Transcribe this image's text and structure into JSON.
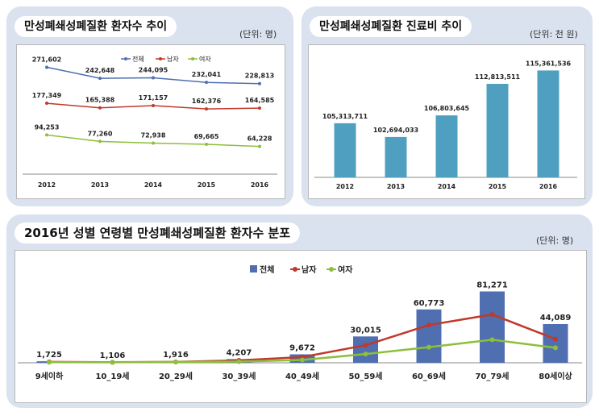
{
  "colors": {
    "total": "#4f6fb0",
    "male": "#c0392b",
    "female": "#8dbf3a",
    "bar": "#4fa0c0"
  },
  "chart_data": [
    {
      "type": "line",
      "title": "만성폐쇄성폐질환 환자수 추이",
      "unit": "(단위: 명)",
      "categories": [
        "2012",
        "2013",
        "2014",
        "2015",
        "2016"
      ],
      "legend": [
        "전체",
        "남자",
        "여자"
      ],
      "series": [
        {
          "name": "전체",
          "values": [
            271602,
            242648,
            244095,
            232041,
            228813
          ],
          "labels": [
            "271,602",
            "242,648",
            "244,095",
            "232,041",
            "228,813"
          ]
        },
        {
          "name": "남자",
          "values": [
            177349,
            165388,
            171157,
            162376,
            164585
          ],
          "labels": [
            "177,349",
            "165,388",
            "171,157",
            "162,376",
            "164,585"
          ]
        },
        {
          "name": "여자",
          "values": [
            94253,
            77260,
            72938,
            69665,
            64228
          ],
          "labels": [
            "94,253",
            "77,260",
            "72,938",
            "69,665",
            "64,228"
          ]
        }
      ],
      "ylim": [
        0,
        300000
      ]
    },
    {
      "type": "bar",
      "title": "만성폐쇄성폐질환 진료비 추이",
      "unit": "(단위: 천 원)",
      "categories": [
        "2012",
        "2013",
        "2014",
        "2015",
        "2016"
      ],
      "values": [
        105313711,
        102694033,
        106803645,
        112813511,
        115361536
      ],
      "labels": [
        "105,313,711",
        "102,694,033",
        "106,803,645",
        "112,813,511",
        "115,361,536"
      ],
      "ylim": [
        95000000,
        116500000
      ]
    },
    {
      "type": "bar",
      "title": "2016년 성별 연령별 만성폐쇄성폐질환 환자수 분포",
      "unit": "(단위: 명)",
      "categories": [
        "9세이하",
        "10_19세",
        "20_29세",
        "30_39세",
        "40_49세",
        "50_59세",
        "60_69세",
        "70_79세",
        "80세이상"
      ],
      "legend": [
        "전체",
        "남자",
        "여자"
      ],
      "series": [
        {
          "name": "전체",
          "type": "bar",
          "values": [
            1725,
            1106,
            1916,
            4207,
            9672,
            30015,
            60773,
            81271,
            44089
          ],
          "labels": [
            "1,725",
            "1,106",
            "1,916",
            "4,207",
            "9,672",
            "30,015",
            "60,773",
            "81,271",
            "44,089"
          ]
        },
        {
          "name": "남자",
          "type": "line",
          "values": [
            1000,
            600,
            1000,
            2800,
            6500,
            20000,
            43000,
            55000,
            27000
          ]
        },
        {
          "name": "여자",
          "type": "line",
          "values": [
            725,
            506,
            916,
            1407,
            3172,
            10015,
            17773,
            26271,
            17089
          ]
        }
      ],
      "ylim": [
        0,
        90000
      ]
    }
  ]
}
